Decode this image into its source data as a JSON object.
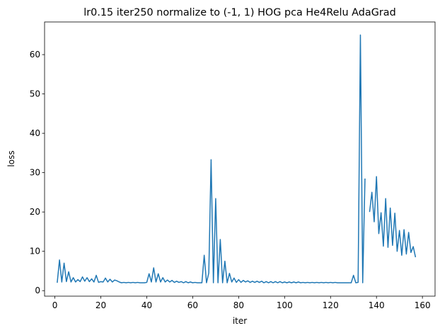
{
  "chart_data": {
    "type": "line",
    "title": "lr0.15 iter250 normalize to (-1, 1) HOG pca He4Relu AdaGrad",
    "xlabel": "iter",
    "ylabel": "loss",
    "x": [
      1,
      2,
      3,
      4,
      5,
      6,
      7,
      8,
      9,
      10,
      11,
      12,
      13,
      14,
      15,
      16,
      17,
      18,
      19,
      20,
      21,
      22,
      23,
      24,
      25,
      26,
      27,
      28,
      29,
      30,
      31,
      32,
      33,
      34,
      35,
      36,
      37,
      38,
      39,
      40,
      41,
      42,
      43,
      44,
      45,
      46,
      47,
      48,
      49,
      50,
      51,
      52,
      53,
      54,
      55,
      56,
      57,
      58,
      59,
      60,
      61,
      62,
      63,
      64,
      65,
      66,
      67,
      68,
      69,
      70,
      71,
      72,
      73,
      74,
      75,
      76,
      77,
      78,
      79,
      80,
      81,
      82,
      83,
      84,
      85,
      86,
      87,
      88,
      89,
      90,
      91,
      92,
      93,
      94,
      95,
      96,
      97,
      98,
      99,
      100,
      101,
      102,
      103,
      104,
      105,
      106,
      107,
      108,
      109,
      110,
      111,
      112,
      113,
      114,
      115,
      116,
      117,
      118,
      119,
      120,
      121,
      122,
      123,
      124,
      125,
      126,
      127,
      128,
      129,
      130,
      131,
      132,
      133,
      134,
      135,
      136,
      137,
      138,
      139,
      140,
      141,
      142,
      143,
      144,
      145,
      146,
      147,
      148,
      149,
      150,
      151,
      152,
      153,
      154,
      155,
      156,
      157
    ],
    "series": [
      {
        "name": "loss",
        "color": "#1f77b4",
        "values": [
          2,
          7.8,
          2.2,
          7,
          2.3,
          4.8,
          2.2,
          3.3,
          2.2,
          2.8,
          2.3,
          3.5,
          2.4,
          3.3,
          2.3,
          3,
          2.2,
          3.9,
          2.1,
          2.3,
          2.2,
          3.2,
          2.2,
          2.9,
          2.2,
          2.7,
          2.5,
          2.2,
          2,
          2.1,
          2,
          2.1,
          2,
          2.1,
          2,
          2.1,
          2,
          2,
          2,
          2.1,
          4.3,
          2.2,
          5.8,
          2.2,
          4.3,
          2.2,
          3.3,
          2.2,
          2.7,
          2.2,
          2.6,
          2.1,
          2.4,
          2.1,
          2.3,
          2,
          2.3,
          2,
          2.2,
          2,
          2.1,
          2,
          2,
          2,
          9,
          2,
          4.5,
          33.3,
          2,
          23.4,
          2,
          13,
          2,
          7.5,
          2,
          4.4,
          2.2,
          3.2,
          2.1,
          2.8,
          2.1,
          2.6,
          2.2,
          2.5,
          2.1,
          2.4,
          2.1,
          2.4,
          2.1,
          2.4,
          2,
          2.3,
          2,
          2.3,
          2,
          2.3,
          2,
          2.3,
          2,
          2.2,
          2,
          2.2,
          2,
          2.2,
          2,
          2.2,
          2,
          2.1,
          2,
          2.1,
          2,
          2.1,
          2,
          2.1,
          2,
          2.1,
          2,
          2.1,
          2,
          2.1,
          2,
          2.1,
          2,
          2,
          2,
          2,
          2,
          2,
          2,
          3.9,
          2,
          2.1,
          65,
          2,
          28.5,
          null,
          20,
          25,
          17.5,
          29,
          14.5,
          19.8,
          11.3,
          23.4,
          11,
          21,
          11.5,
          19.7,
          10,
          15.3,
          9,
          15.5,
          9.3,
          14.8,
          9.7,
          11.2,
          8.5
        ]
      }
    ],
    "xlim": [
      -4.5,
      165.5
    ],
    "ylim": [
      -1.4,
      68.3
    ],
    "xticks": [
      0,
      20,
      40,
      60,
      80,
      100,
      120,
      140,
      160
    ],
    "yticks": [
      0,
      10,
      20,
      30,
      40,
      50,
      60
    ]
  }
}
